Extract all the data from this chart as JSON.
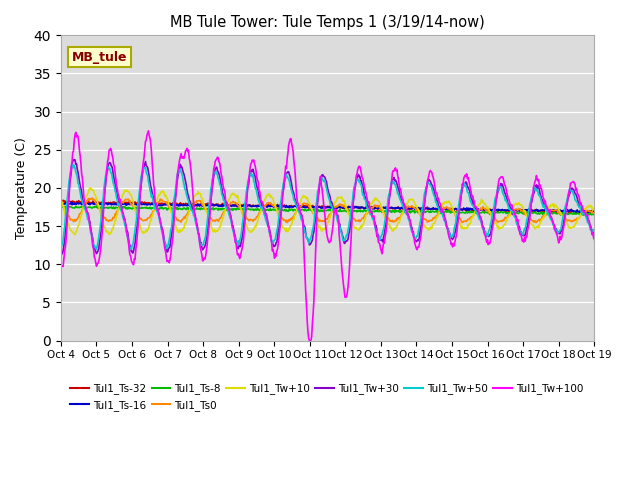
{
  "title": "MB Tule Tower: Tule Temps 1 (3/19/14-now)",
  "ylabel": "Temperature (C)",
  "ylim": [
    0,
    40
  ],
  "yticks": [
    0,
    5,
    10,
    15,
    20,
    25,
    30,
    35,
    40
  ],
  "plot_bg_color": "#dcdcdc",
  "fig_bg_color": "#ffffff",
  "x_labels": [
    "Oct 4",
    "Oct 5",
    "Oct 6",
    "Oct 7",
    "Oct 8",
    "Oct 9",
    "Oct 10",
    "Oct 11",
    "Oct 12",
    "Oct 13",
    "Oct 14",
    "Oct 15",
    "Oct 16",
    "Oct 17",
    "Oct 18",
    "Oct 19"
  ],
  "series": [
    {
      "name": "Tul1_Ts-32",
      "color": "#cc0000",
      "lw": 1.2
    },
    {
      "name": "Tul1_Ts-16",
      "color": "#0000cc",
      "lw": 1.2
    },
    {
      "name": "Tul1_Ts-8",
      "color": "#00bb00",
      "lw": 1.2
    },
    {
      "name": "Tul1_Ts0",
      "color": "#ff8800",
      "lw": 1.2
    },
    {
      "name": "Tul1_Tw+10",
      "color": "#dddd00",
      "lw": 1.2
    },
    {
      "name": "Tul1_Tw+30",
      "color": "#8800cc",
      "lw": 1.2
    },
    {
      "name": "Tul1_Tw+50",
      "color": "#00cccc",
      "lw": 1.2
    },
    {
      "name": "Tul1_Tw+100",
      "color": "#ff00ff",
      "lw": 1.2
    }
  ],
  "annotation_box": {
    "text": "MB_tule",
    "facecolor": "#ffffcc",
    "edgecolor": "#aaaa00",
    "textcolor": "#880000",
    "fontsize": 9,
    "fontweight": "bold"
  }
}
